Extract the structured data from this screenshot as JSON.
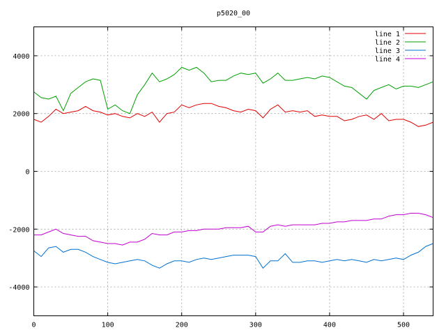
{
  "chart_data": {
    "type": "line",
    "title": "p5020_00",
    "xlabel": "",
    "ylabel": "",
    "xlim": [
      0,
      540
    ],
    "ylim": [
      -5000,
      5000
    ],
    "xticks": [
      0,
      100,
      200,
      300,
      400,
      500
    ],
    "yticks": [
      -4000,
      -2000,
      0,
      2000,
      4000
    ],
    "grid": true,
    "legend_position": "top-right",
    "series": [
      {
        "name": "line 1",
        "color": "#e00000",
        "x": [
          0,
          10,
          20,
          30,
          40,
          50,
          60,
          70,
          80,
          90,
          100,
          110,
          120,
          130,
          140,
          150,
          160,
          170,
          180,
          190,
          200,
          210,
          220,
          230,
          240,
          250,
          260,
          270,
          280,
          290,
          300,
          310,
          320,
          330,
          340,
          350,
          360,
          370,
          380,
          390,
          400,
          410,
          420,
          430,
          440,
          450,
          460,
          470,
          480,
          490,
          500,
          510,
          520,
          530,
          540
        ],
        "values": [
          1800,
          1700,
          1900,
          2150,
          2000,
          2050,
          2100,
          2250,
          2100,
          2050,
          1950,
          2000,
          1900,
          1850,
          2000,
          1900,
          2050,
          1700,
          2000,
          2050,
          2300,
          2200,
          2300,
          2350,
          2350,
          2250,
          2200,
          2100,
          2050,
          2150,
          2100,
          1850,
          2150,
          2300,
          2050,
          2100,
          2050,
          2100,
          1900,
          1950,
          1900,
          1900,
          1750,
          1800,
          1900,
          1950,
          1800,
          2000,
          1750,
          1800,
          1800,
          1700,
          1550,
          1600,
          1700
        ]
      },
      {
        "name": "line 2",
        "color": "#00a000",
        "x": [
          0,
          10,
          20,
          30,
          40,
          50,
          60,
          70,
          80,
          90,
          100,
          110,
          120,
          130,
          140,
          150,
          160,
          170,
          180,
          190,
          200,
          210,
          220,
          230,
          240,
          250,
          260,
          270,
          280,
          290,
          300,
          310,
          320,
          330,
          340,
          350,
          360,
          370,
          380,
          390,
          400,
          410,
          420,
          430,
          440,
          450,
          460,
          470,
          480,
          490,
          500,
          510,
          520,
          530,
          540
        ],
        "values": [
          2750,
          2550,
          2500,
          2600,
          2100,
          2700,
          2900,
          3100,
          3200,
          3150,
          2150,
          2300,
          2100,
          2000,
          2650,
          3000,
          3400,
          3100,
          3200,
          3350,
          3600,
          3500,
          3600,
          3400,
          3100,
          3150,
          3150,
          3300,
          3400,
          3350,
          3400,
          3050,
          3200,
          3400,
          3150,
          3150,
          3200,
          3250,
          3200,
          3300,
          3250,
          3100,
          2950,
          2900,
          2700,
          2500,
          2800,
          2900,
          3000,
          2850,
          2950,
          2950,
          2900,
          3000,
          3100
        ]
      },
      {
        "name": "line 3",
        "color": "#0070d0",
        "x": [
          0,
          10,
          20,
          30,
          40,
          50,
          60,
          70,
          80,
          90,
          100,
          110,
          120,
          130,
          140,
          150,
          160,
          170,
          180,
          190,
          200,
          210,
          220,
          230,
          240,
          250,
          260,
          270,
          280,
          290,
          300,
          310,
          320,
          330,
          340,
          350,
          360,
          370,
          380,
          390,
          400,
          410,
          420,
          430,
          440,
          450,
          460,
          470,
          480,
          490,
          500,
          510,
          520,
          530,
          540
        ],
        "values": [
          -2750,
          -2950,
          -2650,
          -2600,
          -2800,
          -2700,
          -2700,
          -2800,
          -2950,
          -3050,
          -3150,
          -3200,
          -3150,
          -3100,
          -3050,
          -3100,
          -3250,
          -3350,
          -3200,
          -3100,
          -3100,
          -3150,
          -3050,
          -3000,
          -3050,
          -3000,
          -2950,
          -2900,
          -2900,
          -2900,
          -2950,
          -3350,
          -3100,
          -3100,
          -2850,
          -3150,
          -3150,
          -3100,
          -3100,
          -3150,
          -3100,
          -3050,
          -3100,
          -3050,
          -3100,
          -3150,
          -3050,
          -3100,
          -3050,
          -3000,
          -3050,
          -2900,
          -2800,
          -2600,
          -2500
        ]
      },
      {
        "name": "line 4",
        "color": "#c000d0",
        "x": [
          0,
          10,
          20,
          30,
          40,
          50,
          60,
          70,
          80,
          90,
          100,
          110,
          120,
          130,
          140,
          150,
          160,
          170,
          180,
          190,
          200,
          210,
          220,
          230,
          240,
          250,
          260,
          270,
          280,
          290,
          300,
          310,
          320,
          330,
          340,
          350,
          360,
          370,
          380,
          390,
          400,
          410,
          420,
          430,
          440,
          450,
          460,
          470,
          480,
          490,
          500,
          510,
          520,
          530,
          540
        ],
        "values": [
          -2200,
          -2200,
          -2100,
          -2000,
          -2150,
          -2200,
          -2250,
          -2250,
          -2400,
          -2450,
          -2500,
          -2500,
          -2550,
          -2450,
          -2450,
          -2350,
          -2150,
          -2200,
          -2200,
          -2100,
          -2100,
          -2050,
          -2050,
          -2000,
          -2000,
          -2000,
          -1950,
          -1950,
          -1950,
          -1900,
          -2100,
          -2100,
          -1900,
          -1850,
          -1900,
          -1850,
          -1850,
          -1850,
          -1850,
          -1800,
          -1800,
          -1750,
          -1750,
          -1700,
          -1700,
          -1700,
          -1650,
          -1650,
          -1550,
          -1500,
          -1500,
          -1450,
          -1450,
          -1500,
          -1600
        ]
      }
    ]
  }
}
